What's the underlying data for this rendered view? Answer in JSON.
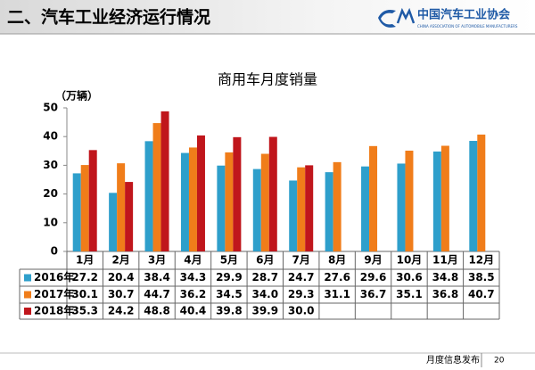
{
  "header": {
    "title": "二、汽车工业经济运行情况",
    "logo_text": "中国汽车工业协会",
    "logo_subtext": "CHINA ASSOCIATION OF AUTOMOBILE MANUFACTURERS"
  },
  "chart_data": {
    "type": "bar",
    "title": "商用车月度销量",
    "y_label": "（万辆）",
    "categories": [
      "1月",
      "2月",
      "3月",
      "4月",
      "5月",
      "6月",
      "7月",
      "8月",
      "9月",
      "10月",
      "11月",
      "12月"
    ],
    "series": [
      {
        "name": "2016年",
        "color": "#2e9fcb",
        "values": [
          27.2,
          20.4,
          38.4,
          34.3,
          29.9,
          28.7,
          24.7,
          27.6,
          29.6,
          30.6,
          34.8,
          38.5
        ],
        "value_labels": [
          "27.2",
          "20.4",
          "38.4",
          "34.3",
          "29.9",
          "28.7",
          "24.7",
          "27.6",
          "29.6",
          "30.6",
          "34.8",
          "38.5"
        ]
      },
      {
        "name": "2017年",
        "color": "#f07d1a",
        "values": [
          30.1,
          30.7,
          44.7,
          36.2,
          34.5,
          34.0,
          29.3,
          31.1,
          36.7,
          35.1,
          36.8,
          40.7
        ],
        "value_labels": [
          "30.1",
          "30.7",
          "44.7",
          "36.2",
          "34.5",
          "34.0",
          "29.3",
          "31.1",
          "36.7",
          "35.1",
          "36.8",
          "40.7"
        ]
      },
      {
        "name": "2018年",
        "color": "#c0161c",
        "values": [
          35.3,
          24.2,
          48.8,
          40.4,
          39.8,
          39.9,
          30.0,
          null,
          null,
          null,
          null,
          null
        ],
        "value_labels": [
          "35.3",
          "24.2",
          "48.8",
          "40.4",
          "39.8",
          "39.9",
          "30.0",
          null,
          null,
          null,
          null,
          null
        ]
      }
    ],
    "ylim": [
      0,
      50
    ],
    "yticks": [
      0,
      10,
      20,
      30,
      40,
      50
    ],
    "grid": false
  },
  "footer": {
    "text": "月度信息发布",
    "page": "20"
  }
}
